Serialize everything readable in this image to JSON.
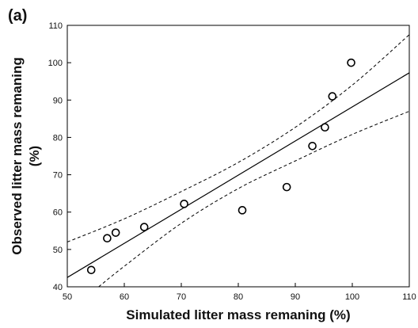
{
  "chart_data": {
    "type": "scatter",
    "panel_label": "(a)",
    "xlabel": "Simulated litter mass remaning (%)",
    "ylabel": "Observed litter mass remaning",
    "ylabel_unit": "(%)",
    "xlim": [
      50,
      110
    ],
    "ylim": [
      40,
      110
    ],
    "xticks": [
      "50",
      "60",
      "70",
      "80",
      "90",
      "100",
      "110"
    ],
    "yticks": [
      "40",
      "50",
      "60",
      "70",
      "80",
      "90",
      "100",
      "110"
    ],
    "grid": false,
    "legend": "none",
    "points": [
      {
        "x": 54.2,
        "y": 44.5
      },
      {
        "x": 57.0,
        "y": 53.0
      },
      {
        "x": 58.5,
        "y": 54.5
      },
      {
        "x": 63.5,
        "y": 56.0
      },
      {
        "x": 70.5,
        "y": 62.2
      },
      {
        "x": 80.7,
        "y": 60.5
      },
      {
        "x": 88.5,
        "y": 66.7
      },
      {
        "x": 93.0,
        "y": 77.7
      },
      {
        "x": 95.2,
        "y": 82.7
      },
      {
        "x": 96.5,
        "y": 91.0
      },
      {
        "x": 99.8,
        "y": 100.0
      }
    ],
    "fit_line": {
      "style": "solid",
      "x": [
        50,
        110
      ],
      "y": [
        42.5,
        97.3
      ]
    },
    "confidence_band": {
      "style": "dashed",
      "level": "95%",
      "upper": {
        "x": [
          50,
          60,
          70,
          80,
          90,
          100,
          110
        ],
        "y": [
          52.0,
          58.2,
          65.5,
          73.3,
          82.7,
          94.0,
          107.5
        ]
      },
      "lower": {
        "x": [
          55.5,
          60,
          70,
          80,
          90,
          100,
          110
        ],
        "y": [
          40.0,
          45.5,
          57.0,
          66.3,
          73.7,
          80.8,
          87.0
        ]
      }
    },
    "colors": {
      "marks": "#000000",
      "background": "#ffffff"
    }
  }
}
